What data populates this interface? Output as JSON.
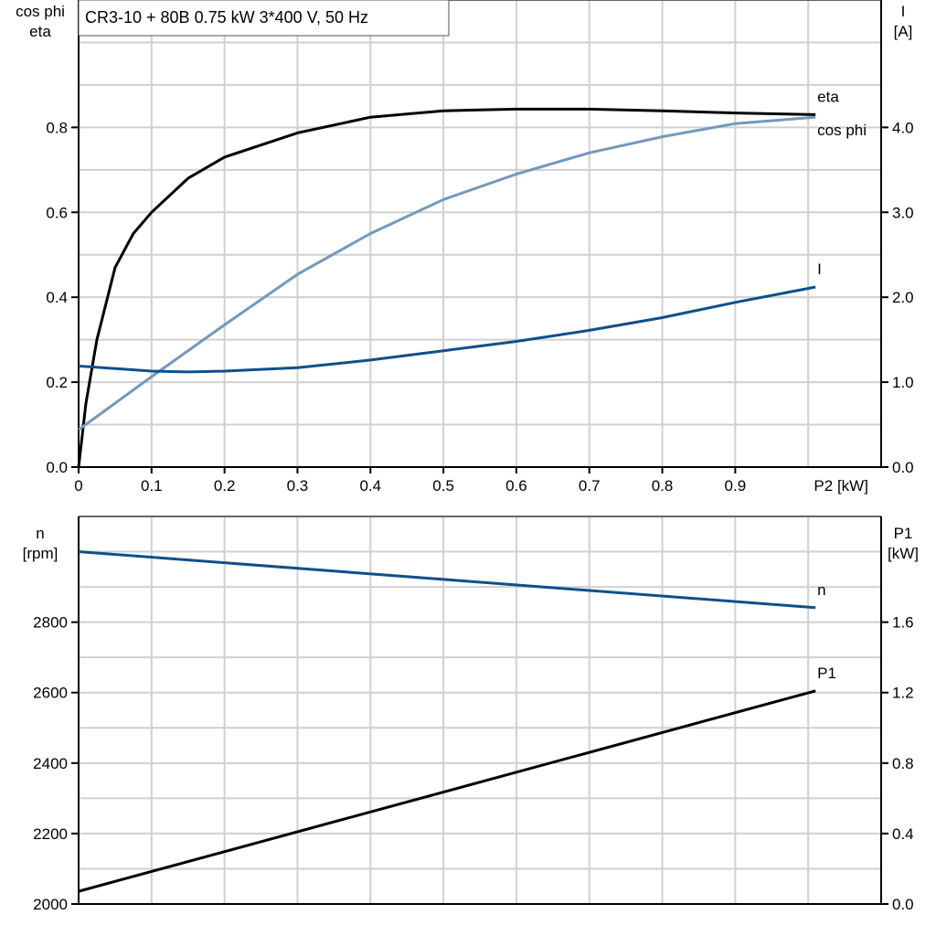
{
  "chart_data": [
    {
      "type": "line",
      "title": "CR3-10 + 80B   0.75 kW   3*400 V, 50 Hz",
      "xlabel": "P2 [kW]",
      "ylabel_left": [
        "cos phi",
        "eta"
      ],
      "ylabel_right": [
        "I",
        "[A]"
      ],
      "xlim": [
        0,
        1.1
      ],
      "ylim_left": [
        0,
        1.1
      ],
      "ylim_right": [
        0,
        5.5
      ],
      "x_ticks": [
        "0",
        "0.1",
        "0.2",
        "0.3",
        "0.4",
        "0.5",
        "0.6",
        "0.7",
        "0.8",
        "0.9"
      ],
      "y_ticks_left": [
        "0.0",
        "0.2",
        "0.4",
        "0.6",
        "0.8"
      ],
      "y_ticks_right": [
        "0.0",
        "1.0",
        "2.0",
        "3.0",
        "4.0"
      ],
      "grid": true,
      "series": [
        {
          "name": "eta",
          "axis": "left",
          "color": "#000000",
          "x": [
            0,
            0.01,
            0.025,
            0.05,
            0.075,
            0.1,
            0.15,
            0.2,
            0.3,
            0.4,
            0.5,
            0.6,
            0.7,
            0.8,
            0.9,
            1.01
          ],
          "y": [
            0,
            0.15,
            0.3,
            0.47,
            0.55,
            0.6,
            0.68,
            0.73,
            0.787,
            0.824,
            0.839,
            0.843,
            0.843,
            0.839,
            0.834,
            0.83
          ]
        },
        {
          "name": "cos phi",
          "axis": "left",
          "color": "#7399bb",
          "x": [
            0,
            0.1,
            0.2,
            0.3,
            0.4,
            0.5,
            0.6,
            0.7,
            0.8,
            0.9,
            1.01
          ],
          "y": [
            0.088,
            0.213,
            0.335,
            0.454,
            0.55,
            0.63,
            0.69,
            0.74,
            0.778,
            0.809,
            0.824
          ]
        },
        {
          "name": "I",
          "axis": "right",
          "color": "#0f4f8a",
          "x": [
            0,
            0.1,
            0.15,
            0.2,
            0.3,
            0.4,
            0.5,
            0.6,
            0.7,
            0.8,
            0.9,
            1.01
          ],
          "y": [
            1.19,
            1.13,
            1.12,
            1.13,
            1.17,
            1.26,
            1.37,
            1.48,
            1.61,
            1.76,
            1.94,
            2.12
          ]
        }
      ]
    },
    {
      "type": "line",
      "ylabel_left": [
        "n",
        "[rpm]"
      ],
      "ylabel_right": [
        "P1",
        "[kW]"
      ],
      "xlim": [
        0,
        1.1
      ],
      "ylim_left": [
        2000,
        3100
      ],
      "ylim_right": [
        0,
        2.2
      ],
      "y_ticks_left": [
        "2000",
        "2200",
        "2400",
        "2600",
        "2800"
      ],
      "y_ticks_right": [
        "0.0",
        "0.4",
        "0.8",
        "1.2",
        "1.6"
      ],
      "grid": true,
      "series": [
        {
          "name": "n",
          "axis": "left",
          "color": "#0f4f8a",
          "x": [
            0,
            1.01
          ],
          "y": [
            3000,
            2841
          ]
        },
        {
          "name": "P1",
          "axis": "right",
          "color": "#000000",
          "x": [
            0,
            1.01
          ],
          "y": [
            0.072,
            1.21
          ]
        }
      ]
    }
  ]
}
